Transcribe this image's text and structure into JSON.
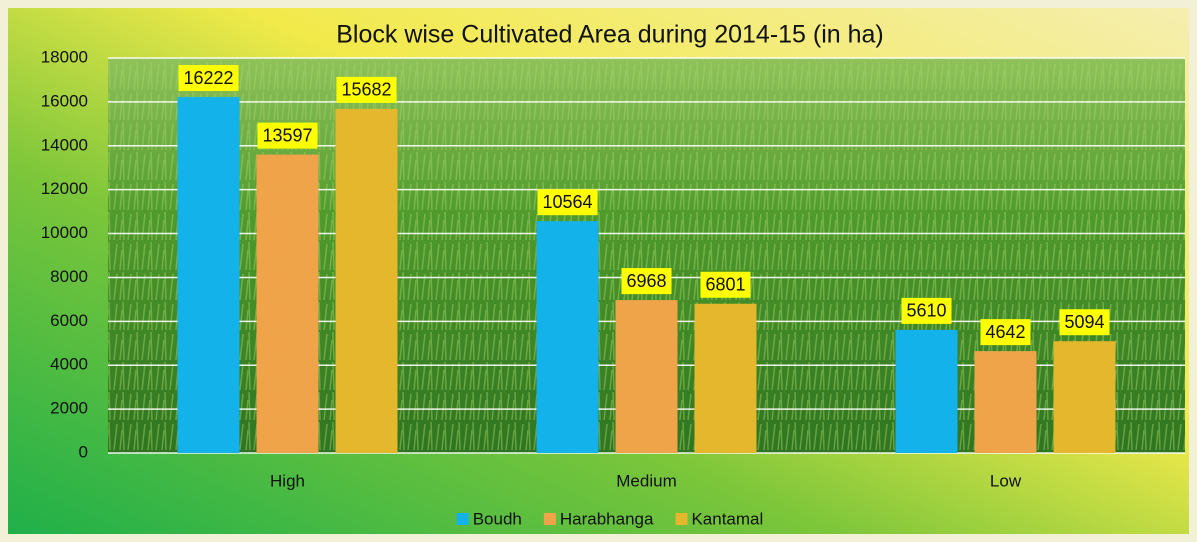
{
  "chart_data": {
    "type": "bar",
    "title": "Block wise Cultivated Area during 2014-15 (in ha)",
    "categories": [
      "High",
      "Medium",
      "Low"
    ],
    "series": [
      {
        "name": "Boudh",
        "color": "#13b2ea",
        "values": [
          16222,
          10564,
          5610
        ]
      },
      {
        "name": "Harabhanga",
        "color": "#f0a44a",
        "values": [
          13597,
          6968,
          4642
        ]
      },
      {
        "name": "Kantamal",
        "color": "#e4b72c",
        "values": [
          15682,
          6801,
          5094
        ]
      }
    ],
    "ylim": [
      0,
      18000
    ],
    "yticks": [
      0,
      2000,
      4000,
      6000,
      8000,
      10000,
      12000,
      14000,
      16000,
      18000
    ],
    "grid": true,
    "legend": "bottom"
  }
}
